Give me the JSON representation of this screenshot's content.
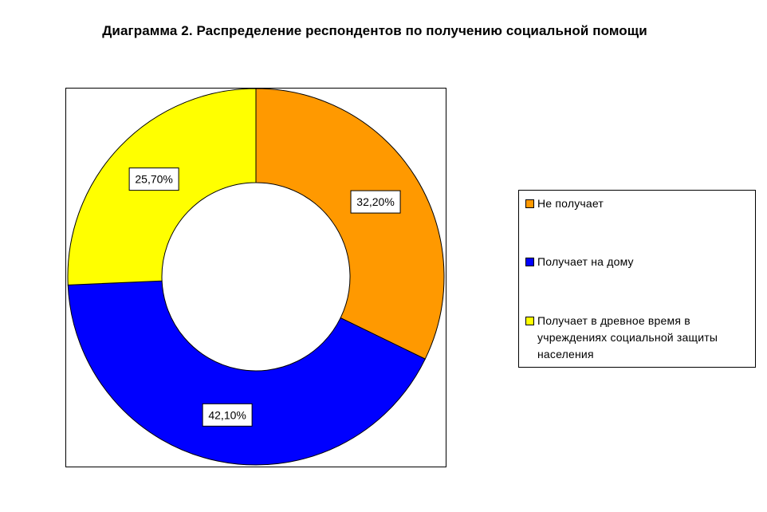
{
  "chart_data": {
    "type": "pie",
    "subtype": "doughnut",
    "title": "Диаграмма 2. Распределение респондентов по получению социальной помощи",
    "categories": [
      "Не получает",
      "Получает на дому",
      "Получает в древное время в учреждениях социальной защиты населения"
    ],
    "values": [
      32.2,
      42.1,
      25.7
    ],
    "data_labels": [
      "32,20%",
      "42,10%",
      "25,70%"
    ],
    "colors": [
      "#ff9900",
      "#0000ff",
      "#ffff00"
    ],
    "legend_position": "right"
  }
}
